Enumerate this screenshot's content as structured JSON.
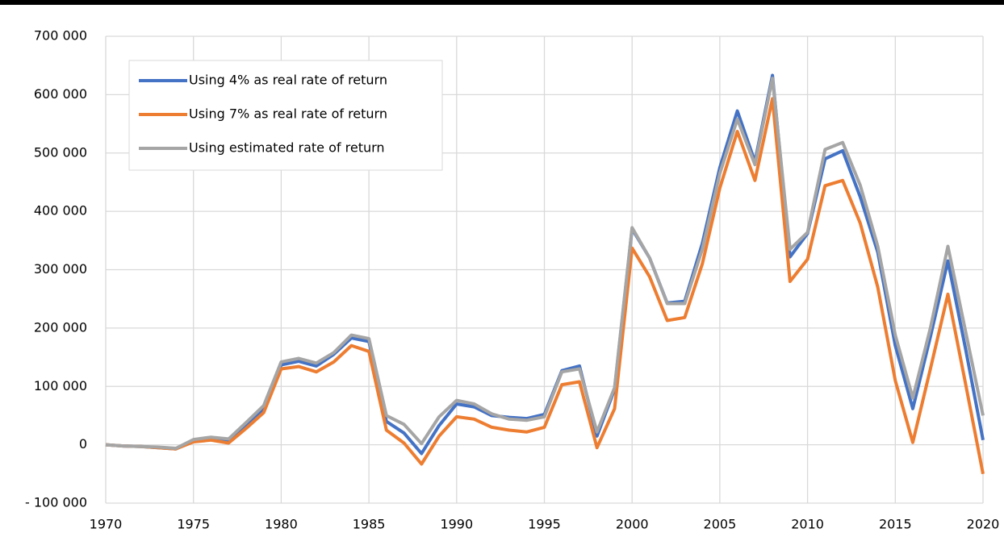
{
  "chart_data": {
    "type": "line",
    "x": [
      1970,
      1971,
      1972,
      1973,
      1974,
      1975,
      1976,
      1977,
      1978,
      1979,
      1980,
      1981,
      1982,
      1983,
      1984,
      1985,
      1986,
      1987,
      1988,
      1989,
      1990,
      1991,
      1992,
      1993,
      1994,
      1995,
      1996,
      1997,
      1998,
      1999,
      2000,
      2001,
      2002,
      2003,
      2004,
      2005,
      2006,
      2007,
      2008,
      2009,
      2010,
      2011,
      2012,
      2013,
      2014,
      2015,
      2016,
      2017,
      2018,
      2019,
      2020
    ],
    "series": [
      {
        "name": "Using 4% as real rate of return",
        "color": "#4472c4",
        "values": [
          0,
          -2000,
          -3000,
          -5000,
          -7000,
          8000,
          12000,
          8000,
          35000,
          62000,
          137000,
          143000,
          135000,
          155000,
          183000,
          177000,
          40000,
          20000,
          -15000,
          33000,
          70000,
          65000,
          50000,
          47000,
          45000,
          52000,
          127000,
          135000,
          15000,
          95000,
          370000,
          320000,
          243000,
          246000,
          345000,
          475000,
          572000,
          485000,
          633000,
          322000,
          362000,
          490000,
          504000,
          425000,
          330000,
          170000,
          62000,
          185000,
          315000,
          165000,
          8000
        ]
      },
      {
        "name": "Using 7% as real rate of return",
        "color": "#ed7d31",
        "values": [
          0,
          -2000,
          -3000,
          -5000,
          -7000,
          5000,
          8000,
          3000,
          28000,
          55000,
          130000,
          134000,
          125000,
          142000,
          170000,
          160000,
          25000,
          3000,
          -33000,
          15000,
          48000,
          44000,
          30000,
          25000,
          22000,
          30000,
          103000,
          108000,
          -5000,
          62000,
          337000,
          288000,
          213000,
          218000,
          310000,
          440000,
          537000,
          453000,
          593000,
          280000,
          318000,
          444000,
          453000,
          380000,
          270000,
          110000,
          4000,
          130000,
          258000,
          105000,
          -50000
        ]
      },
      {
        "name": "Using estimated rate of return",
        "color": "#a5a5a5",
        "values": [
          0,
          -2000,
          -3000,
          -4000,
          -6000,
          9000,
          13000,
          10000,
          38000,
          67000,
          142000,
          148000,
          140000,
          158000,
          188000,
          182000,
          50000,
          35000,
          2000,
          48000,
          76000,
          70000,
          53000,
          44000,
          42000,
          48000,
          125000,
          130000,
          22000,
          98000,
          372000,
          320000,
          242000,
          242000,
          335000,
          465000,
          558000,
          480000,
          628000,
          335000,
          364000,
          506000,
          518000,
          445000,
          340000,
          188000,
          80000,
          200000,
          340000,
          195000,
          50000
        ]
      }
    ],
    "xlim": [
      1970,
      2020
    ],
    "xticks": [
      1970,
      1975,
      1980,
      1985,
      1990,
      1995,
      2000,
      2005,
      2010,
      2015,
      2020
    ],
    "ylim": [
      -100000,
      700000
    ],
    "yticks": [
      {
        "value": -100000,
        "label": "- 100 000"
      },
      0,
      {
        "value": 100000,
        "label": "100 000"
      },
      {
        "value": 200000,
        "label": "200 000"
      },
      {
        "value": 300000,
        "label": "300 000"
      },
      {
        "value": 400000,
        "label": "400 000"
      },
      {
        "value": 500000,
        "label": "500 000"
      },
      {
        "value": 600000,
        "label": "600 000"
      },
      {
        "value": 700000,
        "label": "700 000"
      }
    ],
    "grid": true,
    "legend": "upper-left"
  }
}
